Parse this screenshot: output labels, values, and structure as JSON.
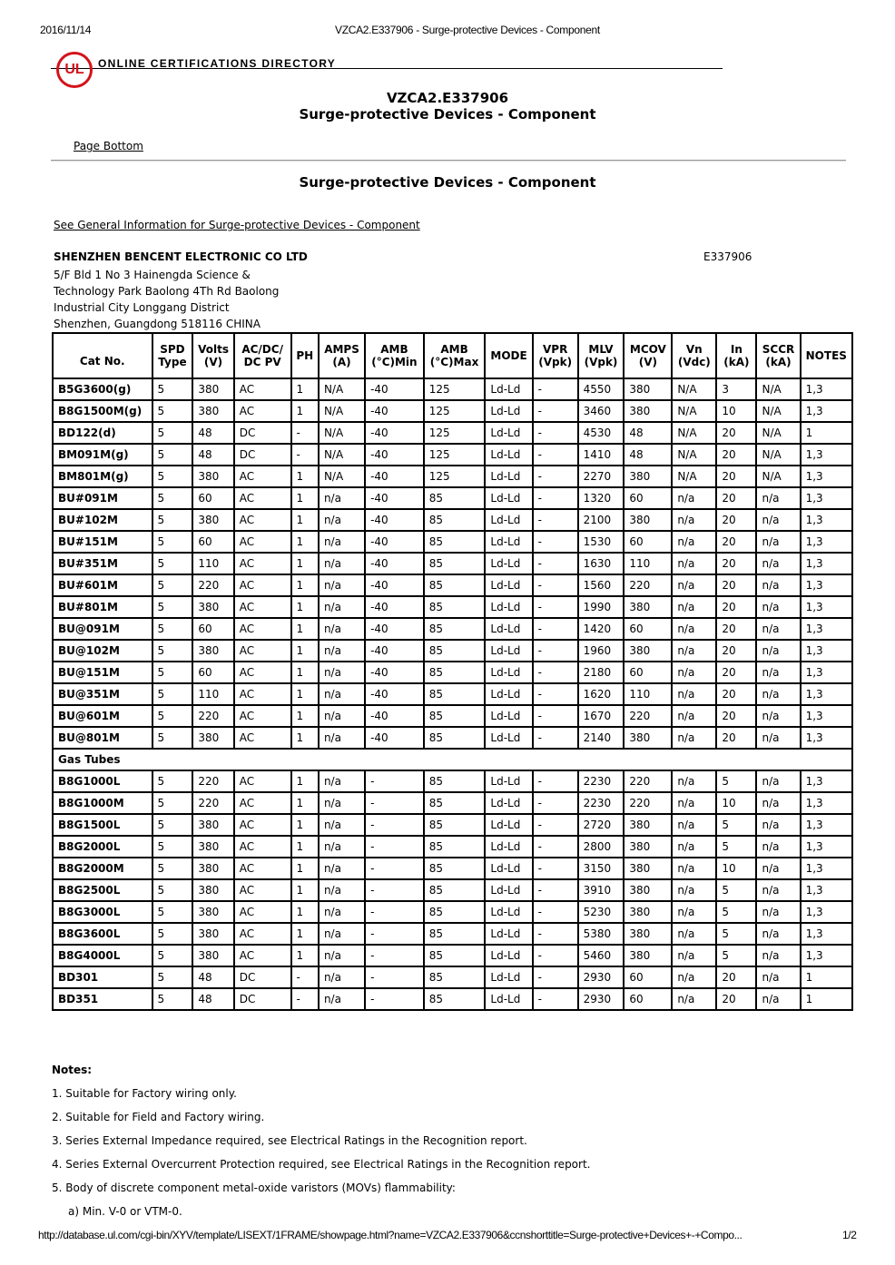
{
  "print_header": {
    "date": "2016/11/14",
    "title": "VZCA2.E337906 - Surge-protective Devices - Component"
  },
  "brand": {
    "logo_text": "UL",
    "directory": "ONLINE CERTIFICATIONS DIRECTORY",
    "color": "#d3131b"
  },
  "heading": {
    "code": "VZCA2.E337906",
    "title": "Surge-protective Devices - Component"
  },
  "page_bottom_link": "Page Bottom",
  "section_title": "Surge-protective Devices - Component",
  "general_info_link": "See General Information for Surge-protective Devices - Component",
  "company": {
    "name": "SHENZHEN BENCENT ELECTRONIC CO LTD",
    "file_no": "E337906",
    "address": [
      "5/F Bld 1 No 3 Hainengda Science &",
      "Technology Park Baolong 4Th Rd Baolong",
      "Industrial City Longgang District",
      "Shenzhen, Guangdong 518116 CHINA"
    ]
  },
  "table": {
    "headers": [
      [
        "Cat No."
      ],
      [
        "SPD",
        "Type"
      ],
      [
        "Volts",
        "(V)"
      ],
      [
        "AC/DC/",
        "DC PV"
      ],
      [
        "PH"
      ],
      [
        "AMPS",
        "(A)"
      ],
      [
        "AMB",
        "(°C)Min"
      ],
      [
        "AMB",
        "(°C)Max"
      ],
      [
        "MODE"
      ],
      [
        "VPR",
        "(Vpk)"
      ],
      [
        "MLV",
        "(Vpk)"
      ],
      [
        "MCOV",
        "(V)"
      ],
      [
        "Vn",
        "(Vdc)"
      ],
      [
        "In",
        "(kA)"
      ],
      [
        "SCCR",
        "(kA)"
      ],
      [
        "NOTES"
      ]
    ],
    "rows": [
      [
        "B5G3600(g)",
        "5",
        "380",
        "AC",
        "1",
        "N/A",
        "-40",
        "125",
        "Ld-Ld",
        "-",
        "4550",
        "380",
        "N/A",
        "3",
        "N/A",
        "1,3"
      ],
      [
        "B8G1500M(g)",
        "5",
        "380",
        "AC",
        "1",
        "N/A",
        "-40",
        "125",
        "Ld-Ld",
        "-",
        "3460",
        "380",
        "N/A",
        "10",
        "N/A",
        "1,3"
      ],
      [
        "BD122(d)",
        "5",
        "48",
        "DC",
        "-",
        "N/A",
        "-40",
        "125",
        "Ld-Ld",
        "-",
        "4530",
        "48",
        "N/A",
        "20",
        "N/A",
        "1"
      ],
      [
        "BM091M(g)",
        "5",
        "48",
        "DC",
        "-",
        "N/A",
        "-40",
        "125",
        "Ld-Ld",
        "-",
        "1410",
        "48",
        "N/A",
        "20",
        "N/A",
        "1,3"
      ],
      [
        "BM801M(g)",
        "5",
        "380",
        "AC",
        "1",
        "N/A",
        "-40",
        "125",
        "Ld-Ld",
        "-",
        "2270",
        "380",
        "N/A",
        "20",
        "N/A",
        "1,3"
      ],
      [
        "BU#091M",
        "5",
        "60",
        "AC",
        "1",
        "n/a",
        "-40",
        "85",
        "Ld-Ld",
        "-",
        "1320",
        "60",
        "n/a",
        "20",
        "n/a",
        "1,3"
      ],
      [
        "BU#102M",
        "5",
        "380",
        "AC",
        "1",
        "n/a",
        "-40",
        "85",
        "Ld-Ld",
        "-",
        "2100",
        "380",
        "n/a",
        "20",
        "n/a",
        "1,3"
      ],
      [
        "BU#151M",
        "5",
        "60",
        "AC",
        "1",
        "n/a",
        "-40",
        "85",
        "Ld-Ld",
        "-",
        "1530",
        "60",
        "n/a",
        "20",
        "n/a",
        "1,3"
      ],
      [
        "BU#351M",
        "5",
        "110",
        "AC",
        "1",
        "n/a",
        "-40",
        "85",
        "Ld-Ld",
        "-",
        "1630",
        "110",
        "n/a",
        "20",
        "n/a",
        "1,3"
      ],
      [
        "BU#601M",
        "5",
        "220",
        "AC",
        "1",
        "n/a",
        "-40",
        "85",
        "Ld-Ld",
        "-",
        "1560",
        "220",
        "n/a",
        "20",
        "n/a",
        "1,3"
      ],
      [
        "BU#801M",
        "5",
        "380",
        "AC",
        "1",
        "n/a",
        "-40",
        "85",
        "Ld-Ld",
        "-",
        "1990",
        "380",
        "n/a",
        "20",
        "n/a",
        "1,3"
      ],
      [
        "BU@091M",
        "5",
        "60",
        "AC",
        "1",
        "n/a",
        "-40",
        "85",
        "Ld-Ld",
        "-",
        "1420",
        "60",
        "n/a",
        "20",
        "n/a",
        "1,3"
      ],
      [
        "BU@102M",
        "5",
        "380",
        "AC",
        "1",
        "n/a",
        "-40",
        "85",
        "Ld-Ld",
        "-",
        "1960",
        "380",
        "n/a",
        "20",
        "n/a",
        "1,3"
      ],
      [
        "BU@151M",
        "5",
        "60",
        "AC",
        "1",
        "n/a",
        "-40",
        "85",
        "Ld-Ld",
        "-",
        "2180",
        "60",
        "n/a",
        "20",
        "n/a",
        "1,3"
      ],
      [
        "BU@351M",
        "5",
        "110",
        "AC",
        "1",
        "n/a",
        "-40",
        "85",
        "Ld-Ld",
        "-",
        "1620",
        "110",
        "n/a",
        "20",
        "n/a",
        "1,3"
      ],
      [
        "BU@601M",
        "5",
        "220",
        "AC",
        "1",
        "n/a",
        "-40",
        "85",
        "Ld-Ld",
        "-",
        "1670",
        "220",
        "n/a",
        "20",
        "n/a",
        "1,3"
      ],
      [
        "BU@801M",
        "5",
        "380",
        "AC",
        "1",
        "n/a",
        "-40",
        "85",
        "Ld-Ld",
        "-",
        "2140",
        "380",
        "n/a",
        "20",
        "n/a",
        "1,3"
      ],
      [
        "Gas Tubes"
      ],
      [
        "B8G1000L",
        "5",
        "220",
        "AC",
        "1",
        "n/a",
        "-",
        "85",
        "Ld-Ld",
        "-",
        "2230",
        "220",
        "n/a",
        "5",
        "n/a",
        "1,3"
      ],
      [
        "B8G1000M",
        "5",
        "220",
        "AC",
        "1",
        "n/a",
        "-",
        "85",
        "Ld-Ld",
        "-",
        "2230",
        "220",
        "n/a",
        "10",
        "n/a",
        "1,3"
      ],
      [
        "B8G1500L",
        "5",
        "380",
        "AC",
        "1",
        "n/a",
        "-",
        "85",
        "Ld-Ld",
        "-",
        "2720",
        "380",
        "n/a",
        "5",
        "n/a",
        "1,3"
      ],
      [
        "B8G2000L",
        "5",
        "380",
        "AC",
        "1",
        "n/a",
        "-",
        "85",
        "Ld-Ld",
        "-",
        "2800",
        "380",
        "n/a",
        "5",
        "n/a",
        "1,3"
      ],
      [
        "B8G2000M",
        "5",
        "380",
        "AC",
        "1",
        "n/a",
        "-",
        "85",
        "Ld-Ld",
        "-",
        "3150",
        "380",
        "n/a",
        "10",
        "n/a",
        "1,3"
      ],
      [
        "B8G2500L",
        "5",
        "380",
        "AC",
        "1",
        "n/a",
        "-",
        "85",
        "Ld-Ld",
        "-",
        "3910",
        "380",
        "n/a",
        "5",
        "n/a",
        "1,3"
      ],
      [
        "B8G3000L",
        "5",
        "380",
        "AC",
        "1",
        "n/a",
        "-",
        "85",
        "Ld-Ld",
        "-",
        "5230",
        "380",
        "n/a",
        "5",
        "n/a",
        "1,3"
      ],
      [
        "B8G3600L",
        "5",
        "380",
        "AC",
        "1",
        "n/a",
        "-",
        "85",
        "Ld-Ld",
        "-",
        "5380",
        "380",
        "n/a",
        "5",
        "n/a",
        "1,3"
      ],
      [
        "B8G4000L",
        "5",
        "380",
        "AC",
        "1",
        "n/a",
        "-",
        "85",
        "Ld-Ld",
        "-",
        "5460",
        "380",
        "n/a",
        "5",
        "n/a",
        "1,3"
      ],
      [
        "BD301",
        "5",
        "48",
        "DC",
        "-",
        "n/a",
        "-",
        "85",
        "Ld-Ld",
        "-",
        "2930",
        "60",
        "n/a",
        "20",
        "n/a",
        "1"
      ],
      [
        "BD351",
        "5",
        "48",
        "DC",
        "-",
        "n/a",
        "-",
        "85",
        "Ld-Ld",
        "-",
        "2930",
        "60",
        "n/a",
        "20",
        "n/a",
        "1"
      ]
    ]
  },
  "notes": {
    "title": "Notes:",
    "items": [
      "1. Suitable for Factory wiring only.",
      "2. Suitable for Field and Factory wiring.",
      "3. Series External Impedance required, see Electrical Ratings in the Recognition report.",
      "4. Series External Overcurrent Protection required, see Electrical Ratings in the Recognition report.",
      "5. Body of discrete component metal-oxide varistors (MOVs) flammability:",
      "a) Min. V-0 or VTM-0."
    ]
  },
  "print_footer": {
    "url": "http://database.ul.com/cgi-bin/XYV/template/LISEXT/1FRAME/showpage.html?name=VZCA2.E337906&ccnshorttitle=Surge-protective+Devices+-+Compo...",
    "page": "1/2"
  }
}
